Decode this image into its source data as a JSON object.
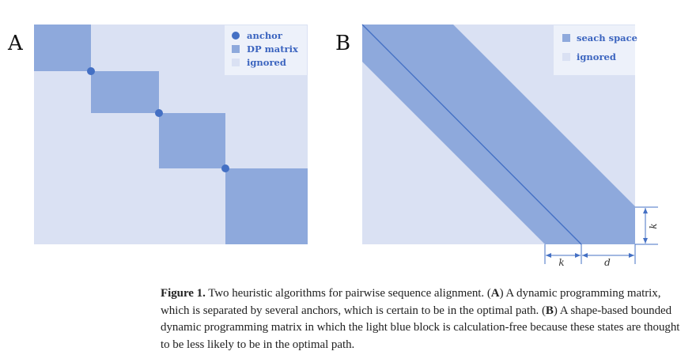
{
  "panelA": {
    "label": "A",
    "legend": [
      {
        "label": "anchor",
        "marker": "dot"
      },
      {
        "label": "DP matrix",
        "marker": "square-dark"
      },
      {
        "label": "ignored",
        "marker": "square-light"
      }
    ]
  },
  "panelB": {
    "label": "B",
    "legend": [
      {
        "label": "seach space",
        "marker": "square-dark"
      },
      {
        "label": "ignored",
        "marker": "square-light"
      }
    ],
    "dimensions": {
      "k_bottom": "k",
      "d_bottom": "d",
      "k_right": "k"
    }
  },
  "colors": {
    "light": "#dae1f3",
    "dark": "#8ea9dc",
    "anchor": "#4470c4",
    "arrow": "#4470c4",
    "legend_text": "#3b64bf"
  },
  "caption": {
    "figure_label": "Figure 1.",
    "t1": " Two heuristic algorithms for pairwise sequence alignment. (",
    "A": "A",
    "t2": ") A dynamic programming matrix, which is separated by several anchors, which is certain to be in the optimal path. (",
    "B": "B",
    "t3": ") A shape-based bounded dynamic programming matrix in which the light blue block is calculation-free because these states are thought to be less likely to be in the optimal path."
  }
}
